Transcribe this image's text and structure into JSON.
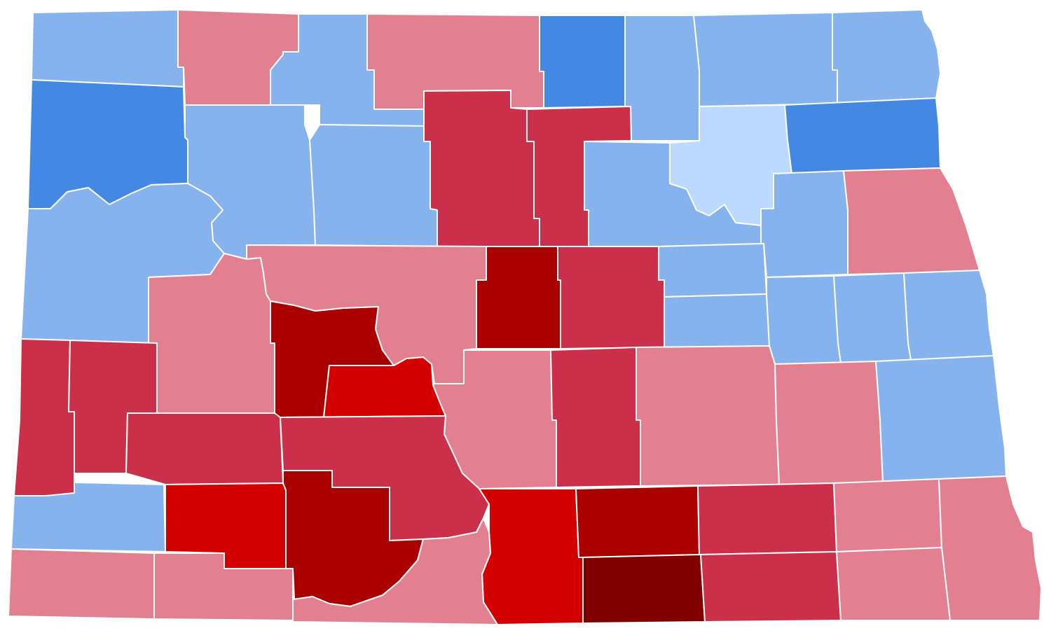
{
  "map": {
    "region": "North Dakota",
    "palette": {
      "r3": "#e27f90",
      "r4": "#cc2f4a",
      "r5": "#d40000",
      "r6": "#aa0000",
      "r7": "#800000",
      "d3": "#86b3ee",
      "d4": "#4389e3",
      "d2": "#bcd9ff"
    },
    "counties": [
      {
        "id": "c1",
        "fill": "d3"
      },
      {
        "id": "c2",
        "fill": "r3"
      },
      {
        "id": "c3",
        "fill": "d3"
      },
      {
        "id": "c4",
        "fill": "r3"
      },
      {
        "id": "c5",
        "fill": "d4"
      },
      {
        "id": "c6",
        "fill": "d3"
      },
      {
        "id": "c7",
        "fill": "d3"
      },
      {
        "id": "c8",
        "fill": "d3"
      },
      {
        "id": "c9",
        "fill": "d4"
      },
      {
        "id": "c10",
        "fill": "d3"
      },
      {
        "id": "c11",
        "fill": "d3"
      },
      {
        "id": "c12",
        "fill": "r4"
      },
      {
        "id": "c13",
        "fill": "r4"
      },
      {
        "id": "c14",
        "fill": "d3"
      },
      {
        "id": "c15",
        "fill": "d2"
      },
      {
        "id": "c16",
        "fill": "d4"
      },
      {
        "id": "c17",
        "fill": "d3"
      },
      {
        "id": "c18",
        "fill": "d3"
      },
      {
        "id": "c19",
        "fill": "r3"
      },
      {
        "id": "c20",
        "fill": "r3"
      },
      {
        "id": "c21",
        "fill": "r6"
      },
      {
        "id": "c22",
        "fill": "r6"
      },
      {
        "id": "c23",
        "fill": "r4"
      },
      {
        "id": "c24",
        "fill": "d3"
      },
      {
        "id": "c25",
        "fill": "d3"
      },
      {
        "id": "c26",
        "fill": "d3"
      },
      {
        "id": "c27",
        "fill": "d3"
      },
      {
        "id": "c28",
        "fill": "d3"
      },
      {
        "id": "c29",
        "fill": "d3"
      },
      {
        "id": "c30",
        "fill": "r4"
      },
      {
        "id": "c31",
        "fill": "r4"
      },
      {
        "id": "c32",
        "fill": "r5"
      },
      {
        "id": "c33",
        "fill": "r3"
      },
      {
        "id": "c34",
        "fill": "r4"
      },
      {
        "id": "c35",
        "fill": "r3"
      },
      {
        "id": "c36",
        "fill": "r3"
      },
      {
        "id": "c37",
        "fill": "r3"
      },
      {
        "id": "c38",
        "fill": "r4"
      },
      {
        "id": "c39",
        "fill": "r4"
      },
      {
        "id": "c40",
        "fill": "d3"
      },
      {
        "id": "c41",
        "fill": "r5"
      },
      {
        "id": "c42",
        "fill": "r6"
      },
      {
        "id": "c43",
        "fill": "r5"
      },
      {
        "id": "c44",
        "fill": "r6"
      },
      {
        "id": "c45",
        "fill": "r4"
      },
      {
        "id": "c46",
        "fill": "r3"
      },
      {
        "id": "c47",
        "fill": "r3"
      },
      {
        "id": "c48",
        "fill": "r3"
      },
      {
        "id": "c49",
        "fill": "r3"
      },
      {
        "id": "c50",
        "fill": "r3"
      },
      {
        "id": "c51",
        "fill": "r7"
      },
      {
        "id": "c52",
        "fill": "r4"
      },
      {
        "id": "c53",
        "fill": "r3"
      }
    ]
  }
}
